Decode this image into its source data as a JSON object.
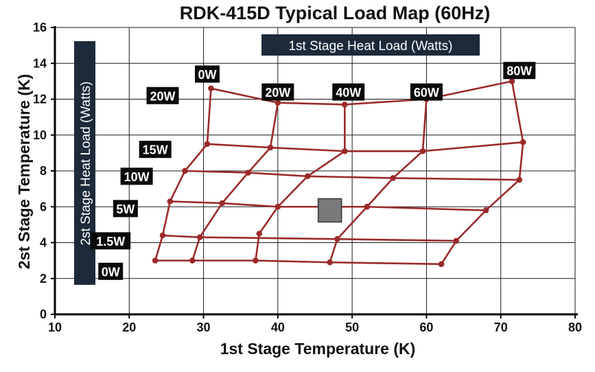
{
  "chart_data": {
    "type": "line",
    "title": "RDK-415D Typical Load Map (60Hz)",
    "xlabel": "1st Stage Temperature (K)",
    "ylabel": "2st Stage Temperature (K)",
    "xlim": [
      10,
      80
    ],
    "ylim": [
      0,
      16
    ],
    "x_ticks": [
      10,
      20,
      30,
      40,
      50,
      60,
      70,
      80
    ],
    "y_ticks": [
      0,
      2,
      4,
      6,
      8,
      10,
      12,
      14,
      16
    ],
    "grid": true,
    "legend_labels": {
      "first_stage": "1st Stage Heat Load (Watts)",
      "second_stage": "2st Stage Heat Load (Watts)"
    },
    "colors": {
      "curve": "#9b2a2a",
      "label_bg": "#0a0a0a",
      "label_text": "#ffffff",
      "legend_bg": "#1c2a3a",
      "marker": "#7a7a7a"
    },
    "series": [
      {
        "name": "0W",
        "group": "2nd stage",
        "points": [
          [
            23.5,
            3.0
          ],
          [
            28.5,
            3.0
          ],
          [
            37.0,
            3.0
          ],
          [
            47.0,
            2.9
          ],
          [
            62.0,
            2.8
          ]
        ]
      },
      {
        "name": "1.5W",
        "group": "2nd stage",
        "points": [
          [
            24.5,
            4.4
          ],
          [
            29.5,
            4.3
          ],
          [
            48.0,
            4.2
          ],
          [
            64.0,
            4.1
          ]
        ]
      },
      {
        "name": "5W",
        "group": "2nd stage",
        "points": [
          [
            25.5,
            6.3
          ],
          [
            32.5,
            6.2
          ],
          [
            40.0,
            6.0
          ],
          [
            52.0,
            6.0
          ],
          [
            68.0,
            5.8
          ]
        ]
      },
      {
        "name": "10W",
        "group": "2nd stage",
        "points": [
          [
            27.5,
            8.0
          ],
          [
            36.0,
            7.9
          ],
          [
            44.0,
            7.7
          ],
          [
            55.5,
            7.6
          ],
          [
            72.5,
            7.5
          ]
        ]
      },
      {
        "name": "15W",
        "group": "2nd stage",
        "points": [
          [
            30.5,
            9.5
          ],
          [
            39.0,
            9.3
          ],
          [
            49.0,
            9.1
          ],
          [
            59.5,
            9.1
          ],
          [
            73.0,
            9.6
          ]
        ]
      },
      {
        "name": "20W",
        "group": "2nd stage",
        "points": [
          [
            31.0,
            12.6
          ],
          [
            40.0,
            11.8
          ],
          [
            49.0,
            11.7
          ],
          [
            60.0,
            12.0
          ],
          [
            71.5,
            13.0
          ]
        ]
      },
      {
        "name": "0W",
        "group": "1st stage",
        "points": [
          [
            23.5,
            3.0
          ],
          [
            24.5,
            4.4
          ],
          [
            25.5,
            6.3
          ],
          [
            27.5,
            8.0
          ],
          [
            30.5,
            9.5
          ],
          [
            31.0,
            12.6
          ]
        ]
      },
      {
        "name": "20W",
        "group": "1st stage",
        "points": [
          [
            28.5,
            3.0
          ],
          [
            29.5,
            4.3
          ],
          [
            32.5,
            6.2
          ],
          [
            36.0,
            7.9
          ],
          [
            39.0,
            9.3
          ],
          [
            40.0,
            11.8
          ]
        ]
      },
      {
        "name": "40W",
        "group": "1st stage",
        "points": [
          [
            37.0,
            3.0
          ],
          [
            37.5,
            4.5
          ],
          [
            40.0,
            6.0
          ],
          [
            44.0,
            7.7
          ],
          [
            49.0,
            9.1
          ],
          [
            49.0,
            11.7
          ]
        ]
      },
      {
        "name": "60W",
        "group": "1st stage",
        "points": [
          [
            47.0,
            2.9
          ],
          [
            48.0,
            4.2
          ],
          [
            52.0,
            6.0
          ],
          [
            55.5,
            7.6
          ],
          [
            59.5,
            9.1
          ],
          [
            60.0,
            12.0
          ]
        ]
      },
      {
        "name": "80W",
        "group": "1st stage",
        "points": [
          [
            62.0,
            2.8
          ],
          [
            64.0,
            4.1
          ],
          [
            68.0,
            5.8
          ],
          [
            72.5,
            7.5
          ],
          [
            73.0,
            9.6
          ],
          [
            71.5,
            13.0
          ]
        ]
      }
    ],
    "annotations": [
      {
        "text": "0W",
        "x": 17.5,
        "y": 2.4
      },
      {
        "text": "1.5W",
        "x": 17.5,
        "y": 4.1
      },
      {
        "text": "5W",
        "x": 19.5,
        "y": 5.9
      },
      {
        "text": "10W",
        "x": 21.0,
        "y": 7.7
      },
      {
        "text": "15W",
        "x": 23.5,
        "y": 9.2
      },
      {
        "text": "20W",
        "x": 24.5,
        "y": 12.2
      },
      {
        "text": "0W",
        "x": 30.5,
        "y": 13.4
      },
      {
        "text": "20W",
        "x": 40.0,
        "y": 12.4
      },
      {
        "text": "40W",
        "x": 49.5,
        "y": 12.4
      },
      {
        "text": "60W",
        "x": 60.0,
        "y": 12.4
      },
      {
        "text": "80W",
        "x": 72.5,
        "y": 13.6
      }
    ],
    "operating_point": {
      "x": 47.0,
      "y": 5.8
    }
  }
}
